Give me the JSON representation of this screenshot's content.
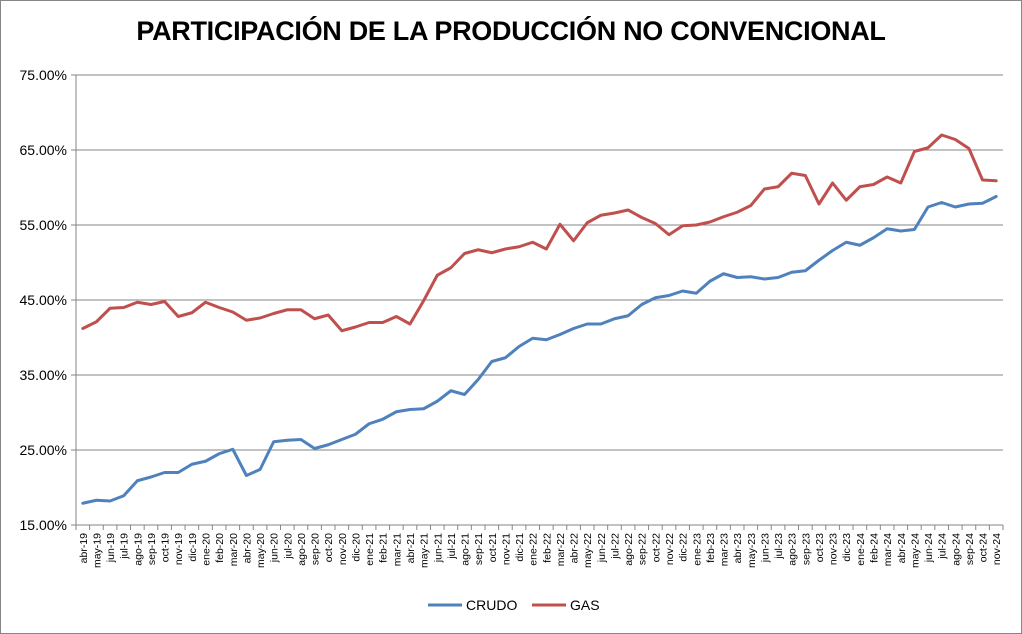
{
  "chart_data": {
    "type": "line",
    "title": "PARTICIPACIÓN DE LA PRODUCCIÓN NO CONVENCIONAL",
    "xlabel": "",
    "ylabel": "",
    "ylim": [
      0.15,
      0.75
    ],
    "yticks": [
      0.15,
      0.25,
      0.35,
      0.45,
      0.55,
      0.65,
      0.75
    ],
    "ytick_labels": [
      "15.00%",
      "25.00%",
      "35.00%",
      "45.00%",
      "55.00%",
      "65.00%",
      "75.00%"
    ],
    "grid": "horizontal",
    "legend": "bottom",
    "categories": [
      "abr-19",
      "may-19",
      "jun-19",
      "jul-19",
      "ago-19",
      "sep-19",
      "oct-19",
      "nov-19",
      "dic-19",
      "ene-20",
      "feb-20",
      "mar-20",
      "abr-20",
      "may-20",
      "jun-20",
      "jul-20",
      "ago-20",
      "sep-20",
      "oct-20",
      "nov-20",
      "dic-20",
      "ene-21",
      "feb-21",
      "mar-21",
      "abr-21",
      "may-21",
      "jun-21",
      "jul-21",
      "ago-21",
      "sep-21",
      "oct-21",
      "nov-21",
      "dic-21",
      "ene-22",
      "feb-22",
      "mar-22",
      "abr-22",
      "may-22",
      "jun-22",
      "jul-22",
      "ago-22",
      "sep-22",
      "oct-22",
      "nov-22",
      "dic-22",
      "ene-23",
      "feb-23",
      "mar-23",
      "abr-23",
      "may-23",
      "jun-23",
      "jul-23",
      "ago-23",
      "sep-23",
      "oct-23",
      "nov-23",
      "dic-23",
      "ene-24",
      "feb-24",
      "mar-24",
      "abr-24",
      "may-24",
      "jun-24",
      "jul-24",
      "ago-24",
      "sep-24",
      "oct-24",
      "nov-24"
    ],
    "series": [
      {
        "name": "CRUDO",
        "color": "#4f81bd",
        "values": [
          0.179,
          0.183,
          0.182,
          0.189,
          0.209,
          0.214,
          0.22,
          0.22,
          0.231,
          0.235,
          0.245,
          0.251,
          0.216,
          0.224,
          0.261,
          0.263,
          0.264,
          0.252,
          0.257,
          0.264,
          0.271,
          0.285,
          0.291,
          0.301,
          0.304,
          0.305,
          0.315,
          0.329,
          0.324,
          0.344,
          0.368,
          0.373,
          0.388,
          0.399,
          0.397,
          0.404,
          0.412,
          0.418,
          0.418,
          0.425,
          0.429,
          0.444,
          0.453,
          0.456,
          0.462,
          0.459,
          0.475,
          0.485,
          0.48,
          0.481,
          0.478,
          0.48,
          0.487,
          0.489,
          0.503,
          0.516,
          0.527,
          0.523,
          0.533,
          0.545,
          0.542,
          0.544,
          0.574,
          0.58,
          0.574,
          0.578,
          0.579,
          0.588
        ]
      },
      {
        "name": "GAS",
        "color": "#c0504d",
        "values": [
          0.412,
          0.421,
          0.439,
          0.44,
          0.447,
          0.444,
          0.448,
          0.428,
          0.433,
          0.447,
          0.44,
          0.434,
          0.423,
          0.426,
          0.432,
          0.437,
          0.437,
          0.425,
          0.43,
          0.409,
          0.414,
          0.42,
          0.42,
          0.428,
          0.418,
          0.449,
          0.483,
          0.493,
          0.512,
          0.517,
          0.513,
          0.518,
          0.521,
          0.527,
          0.518,
          0.551,
          0.529,
          0.553,
          0.563,
          0.566,
          0.57,
          0.56,
          0.552,
          0.537,
          0.549,
          0.55,
          0.554,
          0.561,
          0.567,
          0.576,
          0.598,
          0.601,
          0.619,
          0.616,
          0.578,
          0.606,
          0.583,
          0.601,
          0.604,
          0.614,
          0.606,
          0.648,
          0.653,
          0.67,
          0.664,
          0.652,
          0.61,
          0.609
        ]
      }
    ]
  }
}
